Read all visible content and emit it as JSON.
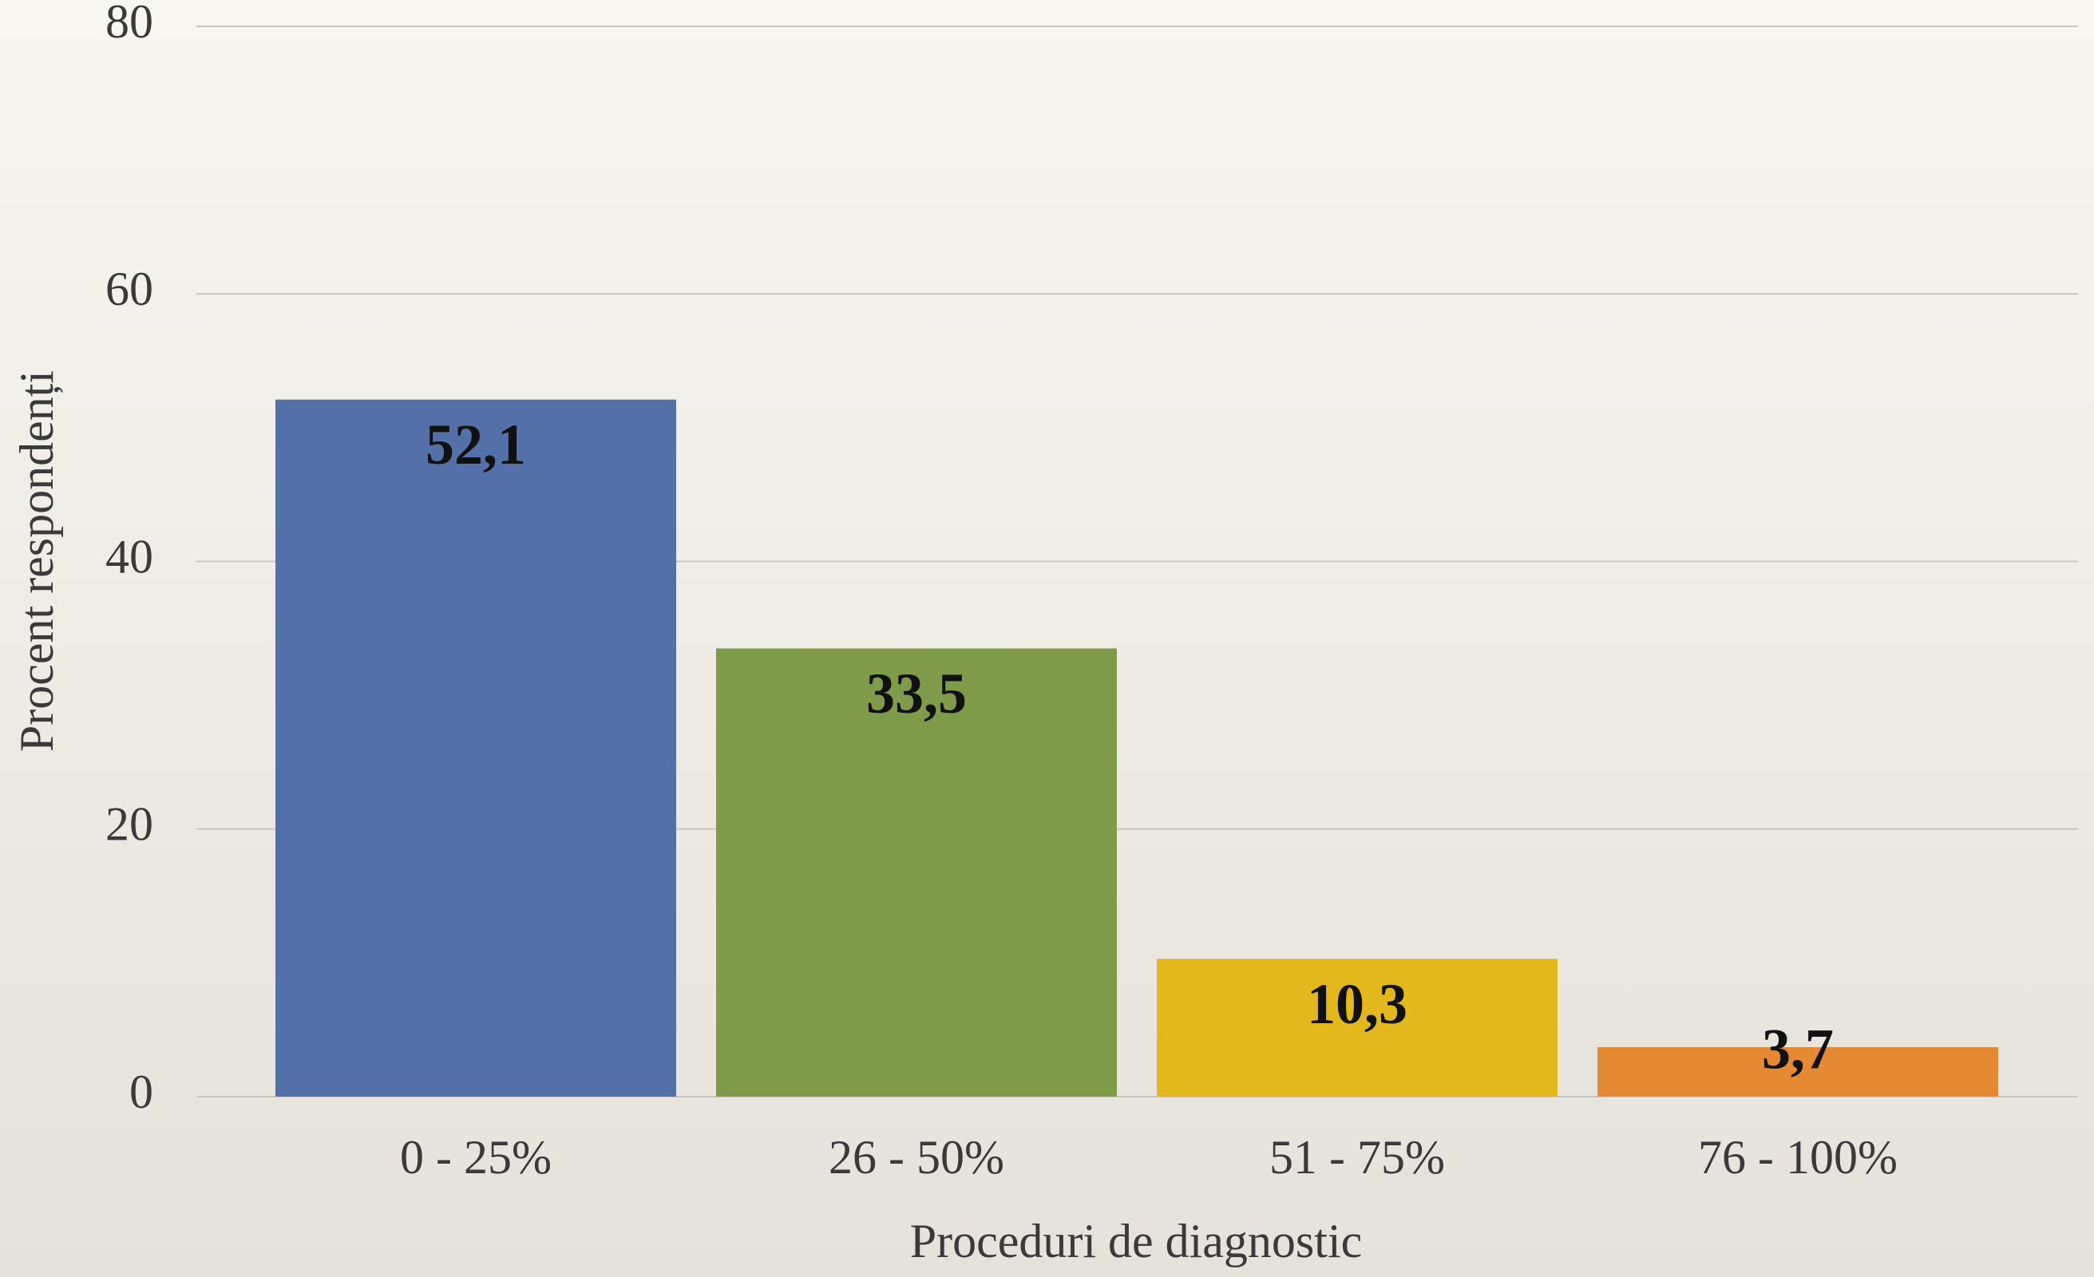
{
  "chart_data": {
    "type": "bar",
    "xlabel": "Proceduri de diagnostic",
    "ylabel": "Procent respondenți",
    "categories": [
      "0 - 25%",
      "26 - 50%",
      "51 - 75%",
      "76 - 100%"
    ],
    "values": [
      52.1,
      33.5,
      10.3,
      3.7
    ],
    "value_labels": [
      "52,1",
      "33,5",
      "10,3",
      "3,7"
    ],
    "colors": [
      "#5470a8",
      "#7f9b4a",
      "#e3b81c",
      "#e58a32"
    ],
    "ylim": [
      0,
      80
    ],
    "yticks": [
      0,
      20,
      40,
      60,
      80
    ],
    "grid": true
  }
}
